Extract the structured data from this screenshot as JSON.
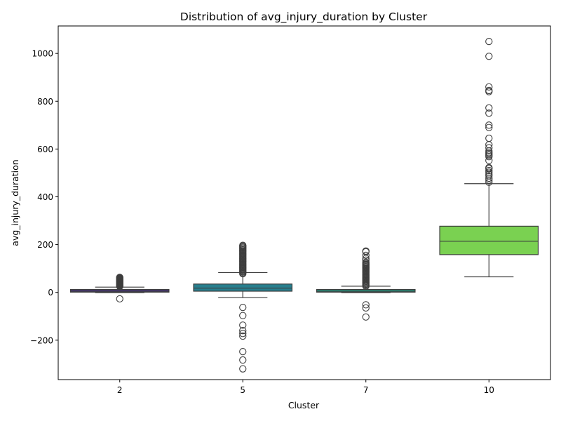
{
  "chart_data": {
    "type": "box",
    "title": "Distribution of avg_injury_duration by Cluster",
    "xlabel": "Cluster",
    "ylabel": "avg_injury_duration",
    "categories": [
      "2",
      "5",
      "7",
      "10"
    ],
    "ylim": [
      -365,
      1115
    ],
    "yticks": [
      -200,
      0,
      200,
      400,
      600,
      800,
      1000
    ],
    "ytick_labels": [
      "−200",
      "0",
      "200",
      "400",
      "600",
      "800",
      "1000"
    ],
    "grid": false,
    "legend": "none",
    "boxes": [
      {
        "category": "2",
        "color": "#46327e",
        "q1": 1,
        "median": 5,
        "q3": 12,
        "whisker_low": -1,
        "whisker_high": 22,
        "outliers": [
          -27,
          25,
          27,
          29,
          31,
          33,
          35,
          37,
          39,
          41,
          43,
          45,
          47,
          49,
          51,
          53,
          55,
          57,
          59,
          61,
          63
        ]
      },
      {
        "category": "5",
        "color": "#277f8e",
        "q1": 5,
        "median": 18,
        "q3": 35,
        "whisker_low": -22,
        "whisker_high": 83,
        "outliers": [
          -320,
          -283,
          -248,
          -183,
          -172,
          -160,
          -137,
          -97,
          -63,
          78,
          82,
          86,
          90,
          94,
          98,
          102,
          106,
          110,
          114,
          118,
          122,
          126,
          130,
          134,
          138,
          142,
          146,
          150,
          154,
          158,
          162,
          166,
          170,
          174,
          178,
          182,
          186,
          190,
          194,
          197
        ]
      },
      {
        "category": "7",
        "color": "#1fa187",
        "q1": 1,
        "median": 5,
        "q3": 12,
        "whisker_low": -1,
        "whisker_high": 26,
        "outliers": [
          -103,
          -65,
          -52,
          26,
          30,
          34,
          38,
          42,
          46,
          50,
          54,
          58,
          62,
          66,
          70,
          74,
          78,
          82,
          86,
          90,
          94,
          98,
          102,
          106,
          110,
          114,
          118,
          122,
          126,
          135,
          142,
          155,
          170,
          173
        ]
      },
      {
        "category": "10",
        "color": "#7ad151",
        "q1": 158,
        "median": 214,
        "q3": 277,
        "whisker_low": 65,
        "whisker_high": 455,
        "outliers": [
          461,
          470,
          478,
          488,
          495,
          503,
          510,
          518,
          522,
          552,
          568,
          574,
          580,
          585,
          592,
          605,
          618,
          645,
          690,
          700,
          750,
          772,
          840,
          845,
          860,
          988,
          1050
        ]
      }
    ]
  }
}
